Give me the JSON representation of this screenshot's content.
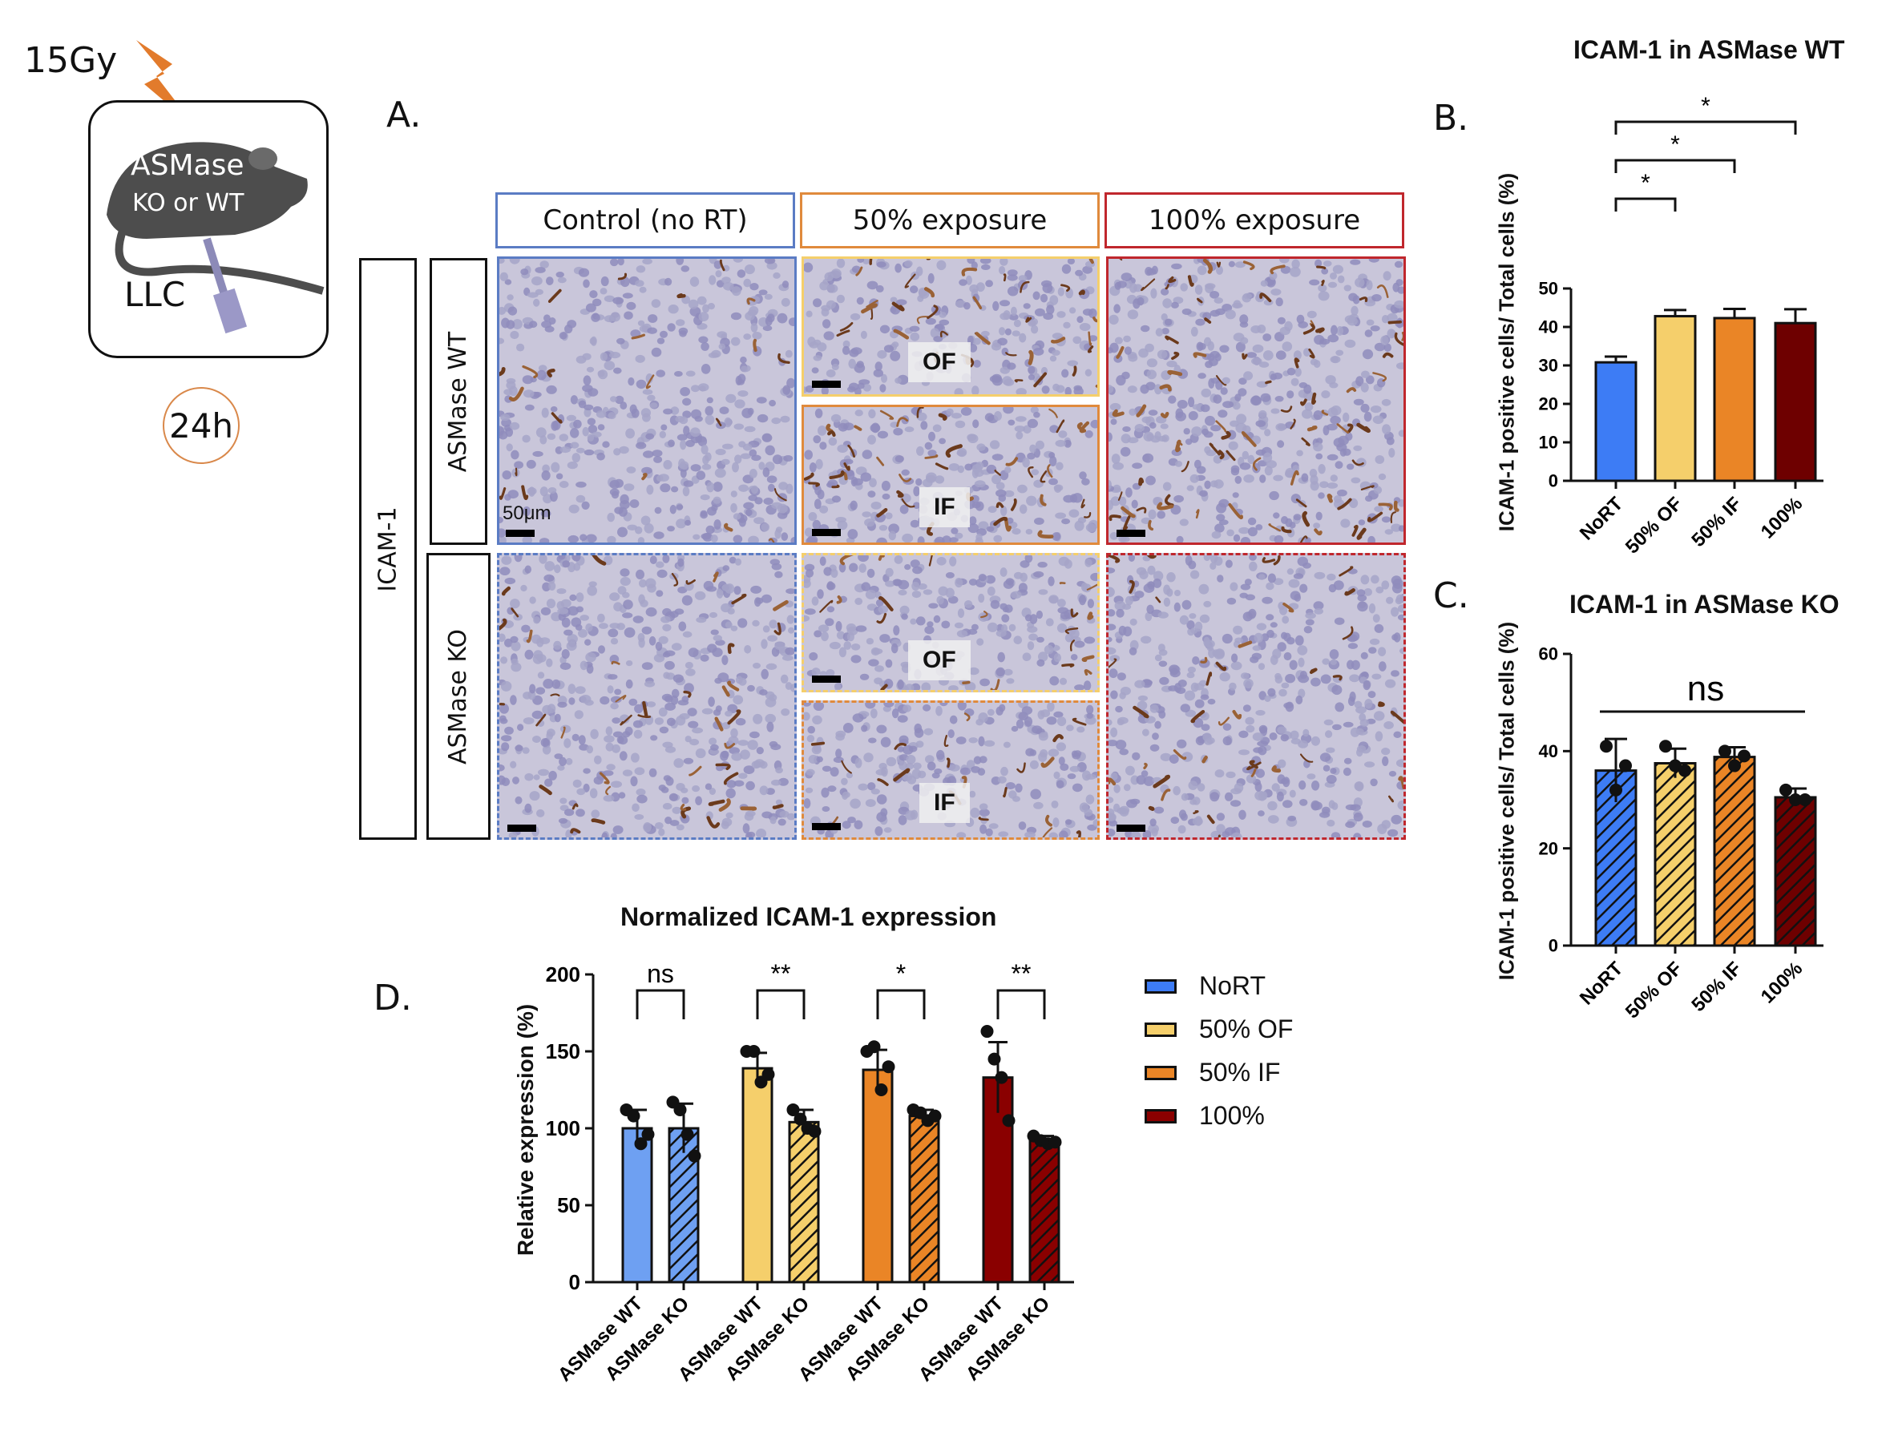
{
  "schematic": {
    "dose": "15Gy",
    "mouse_label_line1": "ASMase",
    "mouse_label_line2": "KO or WT",
    "tumor": "LLC",
    "time": "24h"
  },
  "panels": {
    "a": "A.",
    "b": "B.",
    "c": "C.",
    "d": "D."
  },
  "panel_a": {
    "columns": [
      {
        "label": "Control (no RT)",
        "color": "#5b7cc4"
      },
      {
        "label": "50% exposure",
        "color": "#e08a3c"
      },
      {
        "label": "100% exposure",
        "color": "#c0272d"
      }
    ],
    "marker": "ICAM-1",
    "rows": [
      "ASMase WT",
      "ASMase KO"
    ],
    "scale_label": "50μm",
    "of_label": "OF",
    "if_label": "IF"
  },
  "chart_data": [
    {
      "type": "bar",
      "title": "ICAM-1 in ASMase WT",
      "ylabel": "ICAM-1 positive cells/ Total cells (%)",
      "categories": [
        "NoRT",
        "50% OF",
        "50% IF",
        "100%"
      ],
      "values": [
        30.8,
        42.8,
        42.3,
        41.0
      ],
      "errors": [
        1.5,
        1.6,
        2.4,
        3.6
      ],
      "colors": [
        "#3d7cf5",
        "#f5cf6b",
        "#ea8526",
        "#6e0000"
      ],
      "ylim": [
        0,
        50
      ],
      "yticks": [
        0,
        10,
        20,
        30,
        40,
        50
      ],
      "significance": [
        "*",
        "*",
        "*"
      ]
    },
    {
      "type": "bar",
      "title": "ICAM-1 in ASMase KO",
      "ylabel": "ICAM-1 positive cells/ Total cells (%)",
      "categories": [
        "NoRT",
        "50% OF",
        "50% IF",
        "100%"
      ],
      "values": [
        36.0,
        37.5,
        38.8,
        30.5
      ],
      "errors": [
        6.5,
        3.0,
        2.0,
        1.8
      ],
      "points": [
        [
          41,
          32,
          37
        ],
        [
          41,
          37,
          36
        ],
        [
          40,
          37,
          39
        ],
        [
          32,
          30,
          30
        ]
      ],
      "colors": [
        "#3d7cf5",
        "#f5cf6b",
        "#ea8526",
        "#6e0000"
      ],
      "ylim": [
        0,
        60
      ],
      "yticks": [
        0,
        20,
        40,
        60
      ],
      "significance": [
        "ns"
      ]
    },
    {
      "type": "bar",
      "title": "Normalized ICAM-1 expression",
      "ylabel": "Relative expression (%)",
      "categories": [
        "ASMase WT",
        "ASMase KO",
        "ASMase WT",
        "ASMase KO",
        "ASMase WT",
        "ASMase KO",
        "ASMase WT",
        "ASMase KO"
      ],
      "groups": [
        "NoRT",
        "50% OF",
        "50% IF",
        "100%"
      ],
      "values": [
        100,
        100,
        139,
        104,
        138,
        108,
        133,
        92
      ],
      "errors": [
        12,
        16,
        10,
        8,
        13,
        4,
        23,
        3
      ],
      "points": [
        [
          112,
          108,
          90,
          96
        ],
        [
          117,
          112,
          96,
          82
        ],
        [
          150,
          150,
          130,
          135
        ],
        [
          112,
          106,
          100,
          98
        ],
        [
          150,
          153,
          125,
          140
        ],
        [
          112,
          110,
          105,
          108
        ],
        [
          163,
          145,
          133,
          105
        ],
        [
          95,
          92,
          90,
          91
        ]
      ],
      "colors": [
        "#6ea0f2",
        "#f5cf6b",
        "#ea8526",
        "#8a0000"
      ],
      "ylim": [
        0,
        200
      ],
      "yticks": [
        0,
        50,
        100,
        150,
        200
      ],
      "significance": [
        "ns",
        "**",
        "*",
        "**"
      ],
      "legend": [
        "NoRT",
        "50% OF",
        "50% IF",
        "100%"
      ]
    }
  ]
}
